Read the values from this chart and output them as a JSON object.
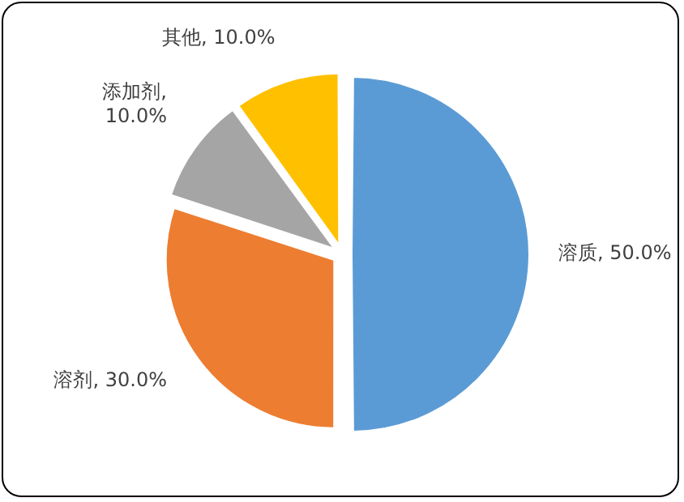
{
  "chart_data": {
    "type": "pie",
    "categories": [
      "溶质",
      "溶剂",
      "添加剂",
      "其他"
    ],
    "values": [
      50,
      30,
      10,
      10
    ],
    "colors": [
      "#5b9bd5",
      "#ed7d31",
      "#a5a5a5",
      "#ffc000"
    ],
    "value_labels": [
      ", 50.0%",
      ", 30.0%",
      ", 10.0%",
      ", 10.0%"
    ],
    "legend": false
  }
}
